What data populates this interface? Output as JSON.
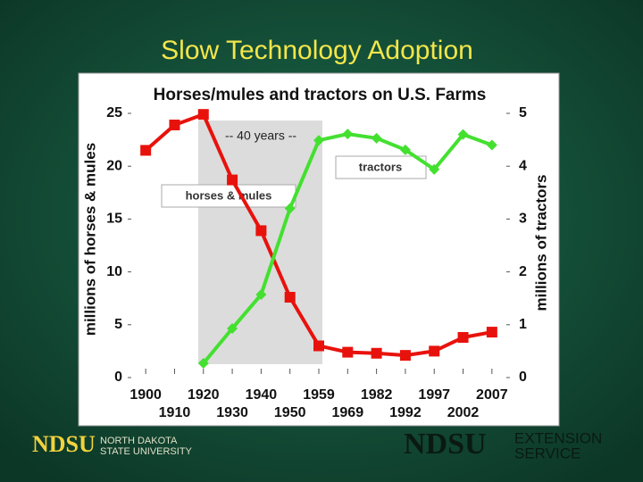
{
  "slide_title": "Slow Technology Adoption",
  "chart_data": {
    "type": "line",
    "title": "Horses/mules and tractors on U.S. Farms",
    "y_label": "millions of horses & mules",
    "y2_label": "millions of tractors",
    "annotation": "-- 40 years --",
    "categories": [
      "1900",
      "1910",
      "1920",
      "1930",
      "1940",
      "1950",
      "1959",
      "1969",
      "1982",
      "1992",
      "1997",
      "2002",
      "2007"
    ],
    "series": [
      {
        "name": "horses & mules",
        "color": "#e8120c",
        "marker": "square",
        "values": [
          21.5,
          23.9,
          24.9,
          18.7,
          13.9,
          7.6,
          3.0,
          2.4,
          2.3,
          2.1,
          2.5,
          3.8,
          4.3
        ]
      },
      {
        "name": "tractors",
        "color": "#44e030",
        "marker": "diamond",
        "axis": "y2",
        "values": [
          null,
          null,
          0.27,
          0.93,
          1.57,
          3.2,
          4.49,
          4.61,
          4.53,
          4.31,
          3.94,
          4.6,
          4.4
        ]
      }
    ],
    "ylim": [
      0,
      25
    ],
    "yticks": [
      0,
      5,
      10,
      15,
      20,
      25
    ],
    "y2lim": [
      0,
      5
    ],
    "y2ticks": [
      0,
      1,
      2,
      3,
      4,
      5
    ]
  },
  "footer": {
    "left_logo": "NDSU",
    "left_logo_text": [
      "NORTH DAKOTA",
      "STATE UNIVERSITY"
    ],
    "right_logo": "NDSU",
    "right_logo_text": [
      "EXTENSION",
      "SERVICE"
    ]
  }
}
